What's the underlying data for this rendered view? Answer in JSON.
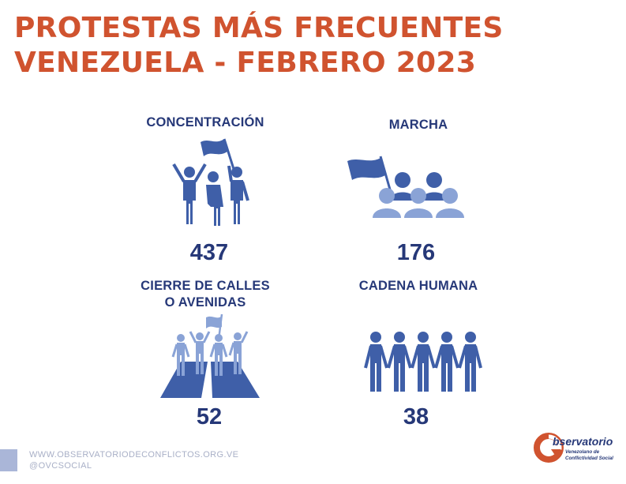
{
  "title": {
    "line1": "PROTESTAS MÁS FRECUENTES",
    "line2": "VENEZUELA - FEBRERO 2023"
  },
  "categories": [
    {
      "label_lines": [
        "CONCENTRACIÓN"
      ],
      "value": "437",
      "icon": "concentration-icon"
    },
    {
      "label_lines": [
        "MARCHA"
      ],
      "value": "176",
      "icon": "march-icon"
    },
    {
      "label_lines": [
        "CIERRE DE CALLES",
        "O AVENIDAS"
      ],
      "value": "52",
      "icon": "street-closure-icon"
    },
    {
      "label_lines": [
        "CADENA HUMANA"
      ],
      "value": "38",
      "icon": "human-chain-icon"
    }
  ],
  "footer": {
    "website": "WWW.OBSERVATORIODECONFLICTOS.ORG.VE",
    "social": "@OVCSOCIAL"
  },
  "logo": {
    "word": "bservatorio",
    "line1": "Venezolano de",
    "line2": "Conflictividad Social"
  },
  "colors": {
    "title": "#d0532f",
    "primary": "#263878",
    "icon_blue": "#3f5fa8",
    "icon_light": "#8aa3d6"
  }
}
